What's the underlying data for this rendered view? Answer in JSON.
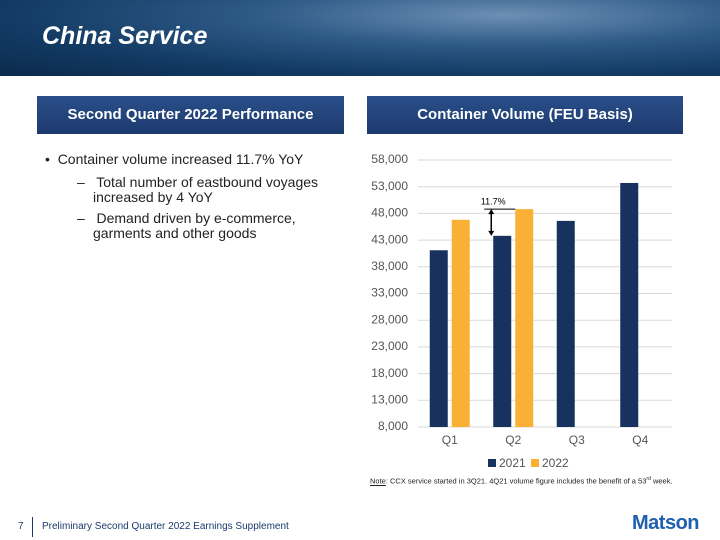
{
  "header": {
    "title": "China Service"
  },
  "left_panel": {
    "title": "Second Quarter 2022 Performance",
    "bullets": [
      {
        "text": "Container volume increased 11.7% YoY",
        "sub": [
          "Total number of eastbound voyages increased by 4 YoY",
          "Demand driven by e-commerce, garments and other goods"
        ]
      }
    ]
  },
  "right_panel": {
    "title": "Container Volume (FEU Basis)"
  },
  "chart_data": {
    "type": "bar",
    "categories": [
      "Q1",
      "Q2",
      "Q3",
      "Q4"
    ],
    "series": [
      {
        "name": "2021",
        "color": "#17325e",
        "values": [
          41100,
          43800,
          46600,
          53700
        ]
      },
      {
        "name": "2022",
        "color": "#f9b035",
        "values": [
          46800,
          48800,
          null,
          null
        ]
      }
    ],
    "ylim": [
      8000,
      58000
    ],
    "yticks": [
      {
        "value": 8000,
        "label": "8,000"
      },
      {
        "value": 13000,
        "label": "13,000"
      },
      {
        "value": 18000,
        "label": "18,000"
      },
      {
        "value": 23000,
        "label": "23,000"
      },
      {
        "value": 28000,
        "label": "28,000"
      },
      {
        "value": 33000,
        "label": "33,000"
      },
      {
        "value": 38000,
        "label": "38,000"
      },
      {
        "value": 43000,
        "label": "43,000"
      },
      {
        "value": 48000,
        "label": "48,000"
      },
      {
        "value": 53000,
        "label": "53,000"
      },
      {
        "value": 58000,
        "label": "58,000"
      }
    ],
    "grid": true,
    "annotation": "11.7%"
  },
  "note": {
    "label": "Note",
    "text": ": CCX service started in 3Q21. 4Q21 volume figure includes the benefit of a 53",
    "sup": "rd",
    "end": " week."
  },
  "footer": {
    "page": "7",
    "text": "Preliminary Second Quarter 2022 Earnings Supplement",
    "logo": "Matson"
  }
}
